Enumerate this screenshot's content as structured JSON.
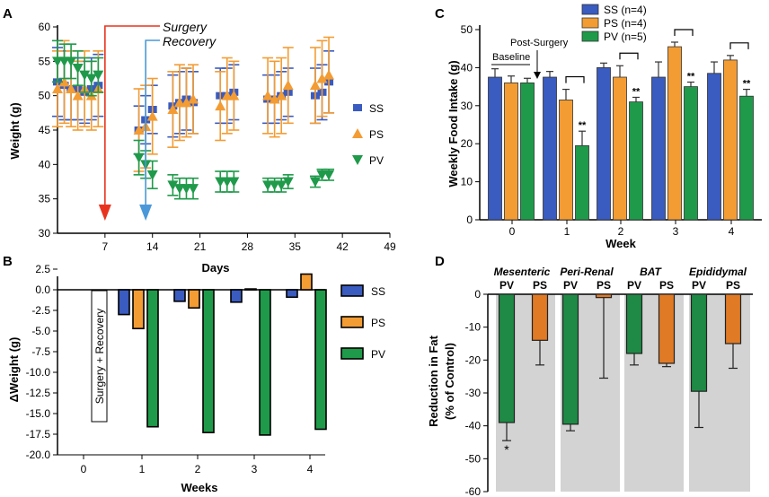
{
  "colors": {
    "SS": "#3a5bbf",
    "PS": "#f39c33",
    "PV": "#1f9a4a",
    "surgery": "#e8341f",
    "recovery": "#4a98d8",
    "gray": "#d3d3d3",
    "psFat": "#e07a25",
    "pvFat": "#1e8a45"
  },
  "chart_data": [
    {
      "id": "A",
      "type": "line",
      "panel_label": "A",
      "xlabel": "Days",
      "ylabel": "Weight (g)",
      "xlim": [
        0,
        49
      ],
      "ylim": [
        30,
        60
      ],
      "xticks": [
        "7",
        "14",
        "21",
        "28",
        "35",
        "42",
        "49"
      ],
      "yticks": [
        "30",
        "35",
        "40",
        "45",
        "50",
        "55",
        "60"
      ],
      "annotations": {
        "surgery": "Surgery",
        "recovery": "Recovery",
        "surgery_day": 7,
        "recovery_day": 13
      },
      "series": [
        {
          "name": "SS",
          "x": [
            0,
            1,
            2,
            3,
            4,
            5,
            6,
            12,
            13,
            14,
            17,
            18,
            19,
            20,
            24,
            25,
            26,
            31,
            32,
            33,
            34,
            38,
            39,
            40
          ],
          "y": [
            52,
            51.5,
            51,
            51,
            50.5,
            51,
            51.5,
            45,
            46.5,
            48,
            48.5,
            49,
            49.5,
            49,
            50,
            50,
            50.5,
            49.5,
            49.5,
            50,
            50.5,
            50,
            50.5,
            52
          ],
          "err": [
            5,
            5,
            4.5,
            4.5,
            4.5,
            4.5,
            4.5,
            3.5,
            3.5,
            3.5,
            4.5,
            4.5,
            4.5,
            4.5,
            4,
            4,
            4,
            3.5,
            3.5,
            3.5,
            3.5,
            4,
            4,
            4.5
          ]
        },
        {
          "name": "PS",
          "x": [
            0,
            1,
            2,
            3,
            4,
            5,
            6,
            12,
            13,
            14,
            17,
            18,
            19,
            20,
            24,
            25,
            26,
            31,
            32,
            33,
            34,
            38,
            39,
            40
          ],
          "y": [
            51,
            52,
            51,
            50,
            51,
            50,
            51,
            45,
            45.5,
            47,
            48,
            49,
            49,
            49.5,
            48.5,
            50,
            50,
            50,
            49.5,
            50,
            51.5,
            51.5,
            52.5,
            53
          ],
          "err": [
            5.5,
            6,
            5.5,
            5,
            5.5,
            5,
            5.5,
            6,
            6,
            5.5,
            5.5,
            5.5,
            5,
            5,
            5,
            5.5,
            5,
            5.5,
            5.5,
            5.5,
            5.5,
            5.5,
            5.5,
            5.5
          ]
        },
        {
          "name": "PV",
          "x": [
            0,
            1,
            2,
            3,
            4,
            5,
            6,
            12,
            13,
            14,
            17,
            18,
            19,
            20,
            24,
            25,
            26,
            31,
            32,
            33,
            34,
            38,
            39,
            40
          ],
          "y": [
            55,
            55,
            55,
            54,
            53,
            52.5,
            53,
            41,
            40,
            38.5,
            37,
            36.5,
            36.5,
            36.5,
            37.5,
            37.5,
            37.5,
            37,
            37,
            37,
            37.5,
            37.5,
            38.5,
            38.5
          ],
          "err": [
            3,
            2.5,
            2.5,
            2.5,
            2.5,
            2.5,
            2.5,
            2.5,
            2,
            2,
            1.5,
            1.5,
            1.5,
            1.5,
            1.5,
            1.5,
            1.5,
            1,
            1,
            1,
            1,
            0.8,
            0.8,
            0.8
          ]
        }
      ],
      "legend": [
        "SS",
        "PS",
        "PV"
      ]
    },
    {
      "id": "B",
      "type": "bar",
      "panel_label": "B",
      "xlabel": "Weeks",
      "ylabel": "ΔWeight (g)",
      "ylim": [
        -20,
        2.5
      ],
      "yticks": [
        "2.5",
        "0.0",
        "-2.5",
        "-5.0",
        "-7.5",
        "-10.0",
        "-12.5",
        "-15.0",
        "-17.5",
        "-20.0"
      ],
      "categories": [
        "0",
        "1",
        "2",
        "3",
        "4"
      ],
      "series": [
        {
          "name": "SS",
          "values": [
            null,
            -3.0,
            -1.4,
            -1.5,
            -0.9
          ]
        },
        {
          "name": "PS",
          "values": [
            null,
            -4.7,
            -2.2,
            0.1,
            1.9
          ]
        },
        {
          "name": "PV",
          "values": [
            null,
            -16.6,
            -17.3,
            -17.6,
            -16.9
          ]
        }
      ],
      "annotation": "Surgery + Recovery",
      "legend": [
        "SS",
        "PS",
        "PV"
      ]
    },
    {
      "id": "C",
      "type": "bar",
      "panel_label": "C",
      "xlabel": "Week",
      "ylabel": "Weekly Food Intake (g)",
      "ylim": [
        0,
        50
      ],
      "yticks": [
        "0",
        "10",
        "20",
        "30",
        "40",
        "50"
      ],
      "categories": [
        "0",
        "1",
        "2",
        "3",
        "4"
      ],
      "series": [
        {
          "name": "SS (n=4)",
          "values": [
            37.5,
            37.5,
            40,
            37.5,
            38.5
          ],
          "err": [
            2.2,
            1.5,
            1.2,
            4,
            3
          ]
        },
        {
          "name": "PS (n=4)",
          "values": [
            36,
            31.5,
            37.5,
            45.5,
            42
          ],
          "err": [
            1.8,
            2.8,
            3,
            1.2,
            1.2
          ]
        },
        {
          "name": "PV (n=5)",
          "values": [
            36,
            19.5,
            31,
            35,
            32.5
          ],
          "err": [
            1.2,
            3.8,
            1.2,
            1.2,
            1.8
          ]
        }
      ],
      "significance": [
        "",
        "**",
        "**",
        "**",
        "**"
      ],
      "annotations": {
        "baseline": "Baseline",
        "post_surgery": "Post-Surgery"
      }
    },
    {
      "id": "D",
      "type": "bar",
      "panel_label": "D",
      "ylabel": "Reduction in Fat (% of Control)",
      "ylim": [
        -60,
        0
      ],
      "yticks": [
        "0",
        "-10",
        "-20",
        "-30",
        "-40",
        "-50",
        "-60"
      ],
      "groups": [
        "Mesenteric",
        "Peri-Renal",
        "BAT",
        "Epididymal"
      ],
      "categories": [
        "PV",
        "PS",
        "PV",
        "PS",
        "PV",
        "PS",
        "PV",
        "PS"
      ],
      "values": [
        -39,
        -14,
        -39.5,
        -1,
        -18,
        -21,
        -29.5,
        -15
      ],
      "err": [
        5.5,
        7.5,
        2,
        24.5,
        3.5,
        1,
        11,
        7.5
      ],
      "significance": [
        "*",
        "",
        "",
        "",
        "",
        "",
        "",
        ""
      ]
    }
  ]
}
